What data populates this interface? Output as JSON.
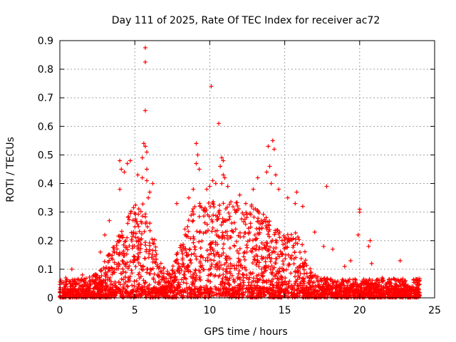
{
  "chart_data": {
    "type": "scatter",
    "title": "Day 111 of 2025, Rate Of TEC Index for receiver ac72",
    "xlabel": "GPS time / hours",
    "ylabel": "ROTI / TECUs",
    "xlim": [
      0,
      25
    ],
    "ylim": [
      0,
      0.9
    ],
    "x_ticks": [
      "0",
      "5",
      "10",
      "15",
      "20",
      "25"
    ],
    "y_ticks": [
      "0",
      "0.1",
      "0.2",
      "0.3",
      "0.4",
      "0.5",
      "0.6",
      "0.7",
      "0.8",
      "0.9"
    ],
    "grid": true,
    "marker": "+",
    "color": "#ff0000",
    "series": [
      {
        "points": [
          [
            5.7,
            0.875
          ],
          [
            5.7,
            0.825
          ],
          [
            5.7,
            0.655
          ],
          [
            5.6,
            0.54
          ],
          [
            5.7,
            0.53
          ],
          [
            5.8,
            0.51
          ],
          [
            5.5,
            0.49
          ],
          [
            5.8,
            0.45
          ],
          [
            4.0,
            0.48
          ],
          [
            4.1,
            0.45
          ],
          [
            4.5,
            0.47
          ],
          [
            4.7,
            0.48
          ],
          [
            4.3,
            0.44
          ],
          [
            4.0,
            0.38
          ],
          [
            5.2,
            0.43
          ],
          [
            5.5,
            0.42
          ],
          [
            5.8,
            0.41
          ],
          [
            6.2,
            0.4
          ],
          [
            6.0,
            0.37
          ],
          [
            5.9,
            0.35
          ],
          [
            9.1,
            0.54
          ],
          [
            9.2,
            0.5
          ],
          [
            9.1,
            0.47
          ],
          [
            9.3,
            0.45
          ],
          [
            10.1,
            0.74
          ],
          [
            10.6,
            0.61
          ],
          [
            10.8,
            0.49
          ],
          [
            10.9,
            0.48
          ],
          [
            10.7,
            0.46
          ],
          [
            10.9,
            0.43
          ],
          [
            11.0,
            0.42
          ],
          [
            10.8,
            0.4
          ],
          [
            11.2,
            0.39
          ],
          [
            10.4,
            0.4
          ],
          [
            10.2,
            0.41
          ],
          [
            10.0,
            0.39
          ],
          [
            9.8,
            0.38
          ],
          [
            13.2,
            0.42
          ],
          [
            12.9,
            0.38
          ],
          [
            14.2,
            0.55
          ],
          [
            13.9,
            0.53
          ],
          [
            14.3,
            0.52
          ],
          [
            14.0,
            0.46
          ],
          [
            14.4,
            0.43
          ],
          [
            13.8,
            0.44
          ],
          [
            14.1,
            0.4
          ],
          [
            14.6,
            0.38
          ],
          [
            15.2,
            0.35
          ],
          [
            15.8,
            0.37
          ],
          [
            15.7,
            0.33
          ],
          [
            17.8,
            0.39
          ],
          [
            20.0,
            0.31
          ],
          [
            20.0,
            0.3
          ],
          [
            19.9,
            0.22
          ],
          [
            20.7,
            0.2
          ],
          [
            20.6,
            0.18
          ],
          [
            20.8,
            0.12
          ],
          [
            22.7,
            0.13
          ],
          [
            23.0,
            0.06
          ],
          [
            18.2,
            0.17
          ],
          [
            17.6,
            0.18
          ],
          [
            19.0,
            0.11
          ],
          [
            19.4,
            0.13
          ],
          [
            21.5,
            0.07
          ],
          [
            8.9,
            0.38
          ],
          [
            8.6,
            0.35
          ],
          [
            7.8,
            0.33
          ],
          [
            12.0,
            0.36
          ],
          [
            12.4,
            0.33
          ],
          [
            16.2,
            0.32
          ],
          [
            3.3,
            0.27
          ],
          [
            3.0,
            0.22
          ],
          [
            2.7,
            0.16
          ],
          [
            0.8,
            0.1
          ],
          [
            1.5,
            0.08
          ],
          [
            0.4,
            0.07
          ],
          [
            23.5,
            0.04
          ],
          [
            22.0,
            0.04
          ],
          [
            1.0,
            0.03
          ],
          [
            17.0,
            0.23
          ]
        ]
      }
    ]
  }
}
